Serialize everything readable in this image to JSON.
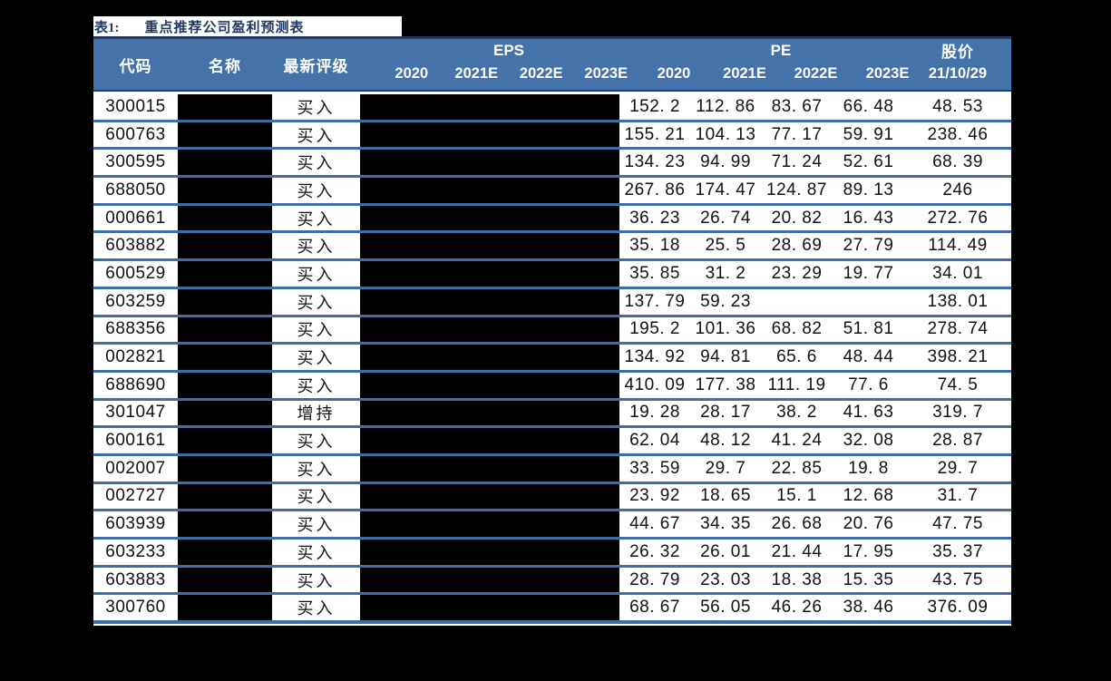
{
  "page": {
    "background_color": "#000000",
    "title_prefix": "表1:",
    "title": "重点推荐公司盈利预测表"
  },
  "colors": {
    "title_navy": "#1f3864",
    "header_bg": "#4573a9",
    "header_border_navy": "#1f3864",
    "row_border_blue": "#3e6fa6",
    "redaction_mask": "#000000"
  },
  "table": {
    "header": {
      "code": "代码",
      "name": "名称",
      "rating": "最新评级",
      "eps_group": "EPS",
      "pe_group": "PE",
      "price_group": "股价",
      "eps_years": [
        "2020",
        "2021E",
        "2022E",
        "2023E"
      ],
      "pe_years": [
        "2020",
        "2021E",
        "2022E",
        "2023E"
      ],
      "price_date": "21/10/29"
    },
    "rows": [
      {
        "code": "300015",
        "rating": "买入",
        "pe": [
          "152. 2",
          "112. 86",
          "83. 67",
          "66. 48"
        ],
        "price": "48. 53"
      },
      {
        "code": "600763",
        "rating": "买入",
        "pe": [
          "155. 21",
          "104. 13",
          "77. 17",
          "59. 91"
        ],
        "price": "238. 46"
      },
      {
        "code": "300595",
        "rating": "买入",
        "pe": [
          "134. 23",
          "94. 99",
          "71. 24",
          "52. 61"
        ],
        "price": "68. 39"
      },
      {
        "code": "688050",
        "rating": "买入",
        "pe": [
          "267. 86",
          "174. 47",
          "124. 87",
          "89. 13"
        ],
        "price": "246"
      },
      {
        "code": "000661",
        "rating": "买入",
        "pe": [
          "36. 23",
          "26. 74",
          "20. 82",
          "16. 43"
        ],
        "price": "272. 76"
      },
      {
        "code": "603882",
        "rating": "买入",
        "pe": [
          "35. 18",
          "25. 5",
          "28. 69",
          "27. 79"
        ],
        "price": "114. 49"
      },
      {
        "code": "600529",
        "rating": "买入",
        "pe": [
          "35. 85",
          "31. 2",
          "23. 29",
          "19. 77"
        ],
        "price": "34. 01"
      },
      {
        "code": "603259",
        "rating": "买入",
        "pe": [
          "137. 79",
          "59. 23",
          "",
          ""
        ],
        "price": "138. 01"
      },
      {
        "code": "688356",
        "rating": "买入",
        "pe": [
          "195. 2",
          "101. 36",
          "68. 82",
          "51. 81"
        ],
        "price": "278. 74"
      },
      {
        "code": "002821",
        "rating": "买入",
        "pe": [
          "134. 92",
          "94. 81",
          "65. 6",
          "48. 44"
        ],
        "price": "398. 21"
      },
      {
        "code": "688690",
        "rating": "买入",
        "pe": [
          "410. 09",
          "177. 38",
          "111. 19",
          "77. 6"
        ],
        "price": "74. 5"
      },
      {
        "code": "301047",
        "rating": "增持",
        "pe": [
          "19. 28",
          "28. 17",
          "38. 2",
          "41. 63"
        ],
        "price": "319. 7"
      },
      {
        "code": "600161",
        "rating": "买入",
        "pe": [
          "62. 04",
          "48. 12",
          "41. 24",
          "32. 08"
        ],
        "price": "28. 87"
      },
      {
        "code": "002007",
        "rating": "买入",
        "pe": [
          "33. 59",
          "29. 7",
          "22. 85",
          "19. 8"
        ],
        "price": "29. 7"
      },
      {
        "code": "002727",
        "rating": "买入",
        "pe": [
          "23. 92",
          "18. 65",
          "15. 1",
          "12. 68"
        ],
        "price": "31. 7"
      },
      {
        "code": "603939",
        "rating": "买入",
        "pe": [
          "44. 67",
          "34. 35",
          "26. 68",
          "20. 76"
        ],
        "price": "47. 75"
      },
      {
        "code": "603233",
        "rating": "买入",
        "pe": [
          "26. 32",
          "26. 01",
          "21. 44",
          "17. 95"
        ],
        "price": "35. 37"
      },
      {
        "code": "603883",
        "rating": "买入",
        "pe": [
          "28. 79",
          "23. 03",
          "18. 38",
          "15. 35"
        ],
        "price": "43. 75"
      },
      {
        "code": "300760",
        "rating": "买入",
        "pe": [
          "68. 67",
          "56. 05",
          "46. 26",
          "38. 46"
        ],
        "price": "376. 09"
      }
    ]
  }
}
